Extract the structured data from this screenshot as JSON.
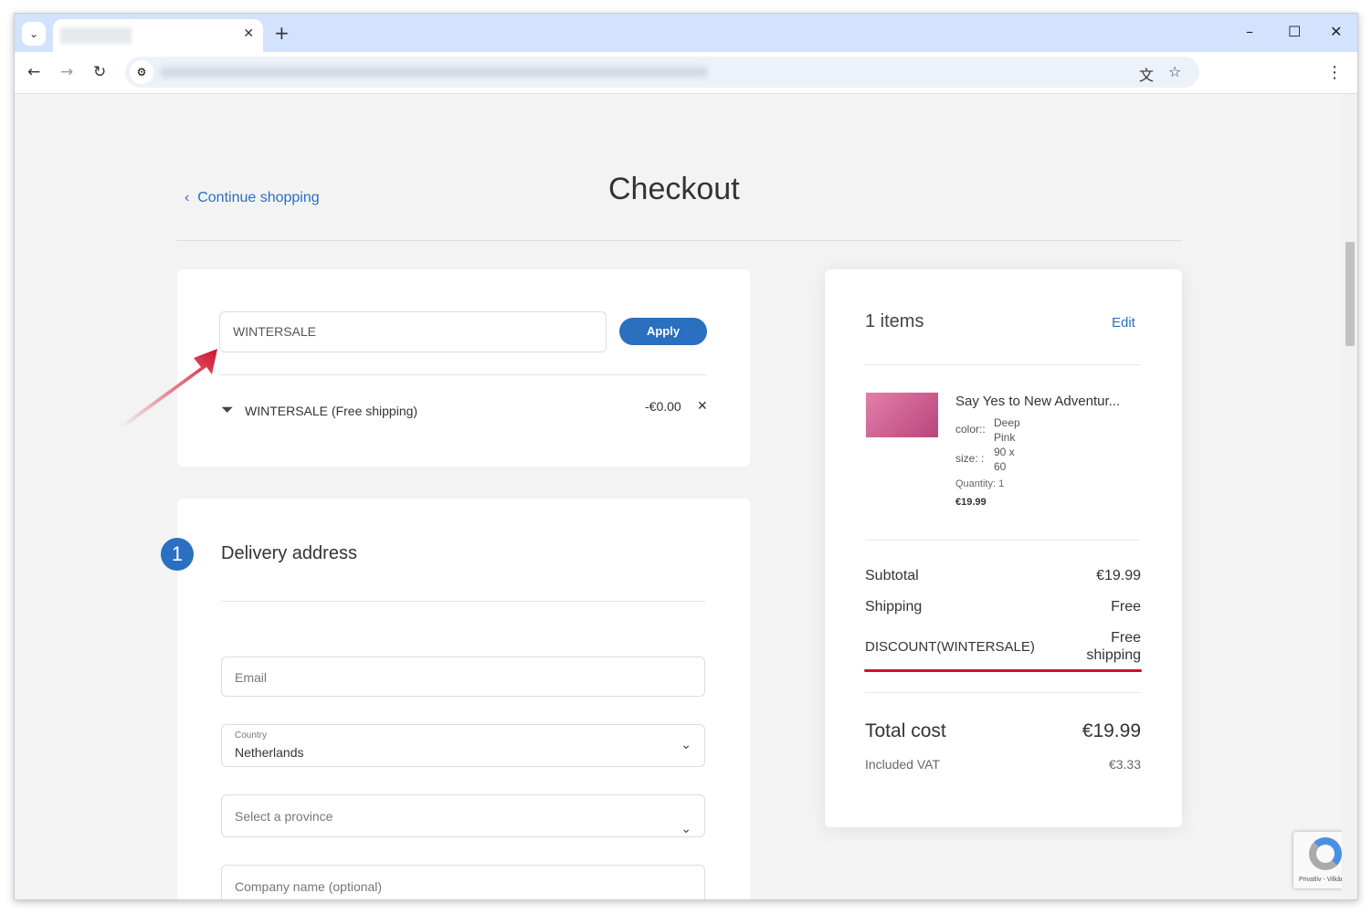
{
  "browser": {
    "new_tab": "+",
    "minimize": "–",
    "maximize": "☐",
    "close": "✕"
  },
  "page": {
    "continue_shopping": "Continue shopping",
    "title": "Checkout",
    "coupon": {
      "value": "WINTERSALE",
      "apply": "Apply",
      "applied_label": "WINTERSALE (Free shipping)",
      "applied_amount": "-€0.00"
    },
    "delivery": {
      "step": "1",
      "heading": "Delivery address",
      "email_placeholder": "Email",
      "country_label": "Country",
      "country_value": "Netherlands",
      "province_placeholder": "Select a province",
      "company_placeholder": "Company name (optional)"
    },
    "summary": {
      "items_count": "1 items",
      "edit": "Edit",
      "product": {
        "name": "Say Yes to New Adventur...",
        "color_label": "color::",
        "color_value": "Deep Pink",
        "size_label": "size:  :",
        "size_value": "90 x 60",
        "quantity": "Quantity: 1",
        "price": "€19.99"
      },
      "subtotal_label": "Subtotal",
      "subtotal": "€19.99",
      "shipping_label": "Shipping",
      "shipping": "Free",
      "discount_label": "DISCOUNT(WINTERSALE)",
      "discount": "Free shipping",
      "total_label": "Total cost",
      "total": "€19.99",
      "vat_label": "Included VAT",
      "vat": "€3.33"
    },
    "recaptcha": "Privatliv - Vilkår"
  },
  "colors": {
    "accent": "#2a6fc0",
    "annotation": "#d0102a"
  }
}
